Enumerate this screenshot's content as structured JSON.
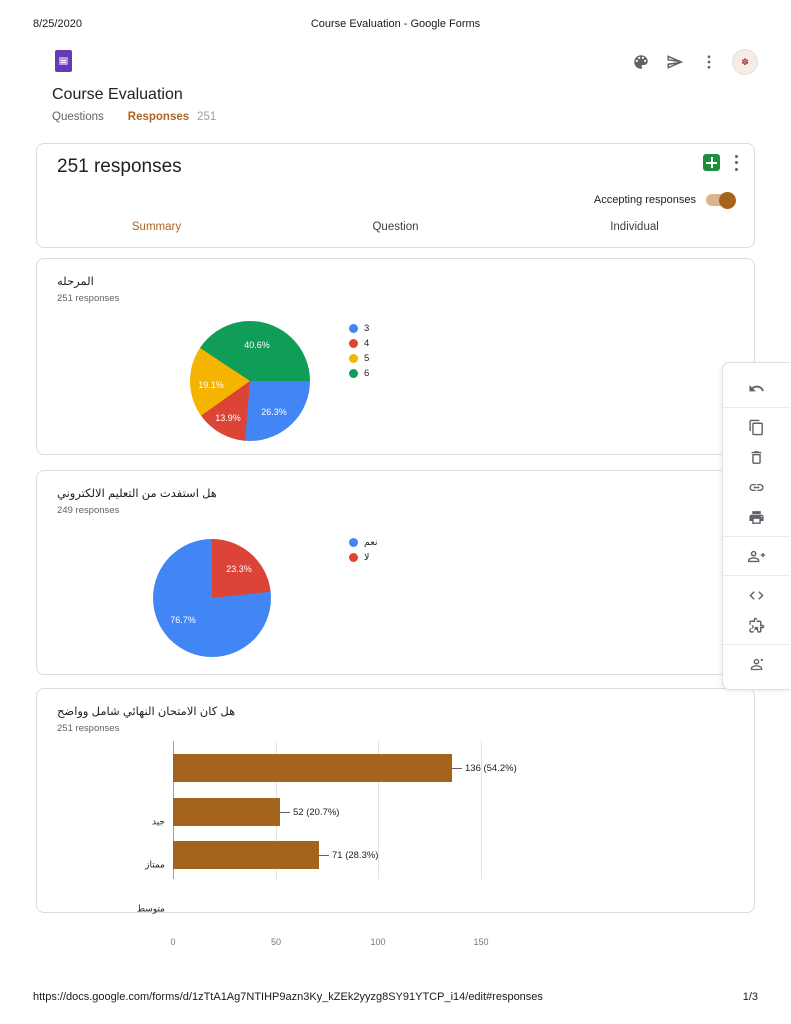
{
  "print_header": {
    "date": "8/25/2020",
    "title": "Course Evaluation - Google Forms"
  },
  "app_header": {
    "form_title": "Course Evaluation",
    "icons": [
      "palette-icon",
      "send-icon",
      "more-vert-icon",
      "profile-avatar"
    ],
    "tabs": {
      "questions": "Questions",
      "responses": "Responses",
      "responses_badge": "251"
    }
  },
  "responses_card": {
    "title": "251 responses",
    "icons": [
      "sheets-icon",
      "more-vert-icon"
    ],
    "accepting_label": "Accepting responses",
    "accepting_on": true,
    "view_tabs": {
      "summary": "Summary",
      "question": "Question",
      "individual": "Individual"
    },
    "active_view_tab": "Summary"
  },
  "chart_data": [
    {
      "type": "pie",
      "title": "المرحله",
      "responses": "251 responses",
      "legend_position": "right",
      "start_deg": 90,
      "slices": [
        {
          "label": "3",
          "value": 26.3,
          "pct": "26.3%",
          "color": "#4285f4"
        },
        {
          "label": "4",
          "value": 13.9,
          "pct": "13.9%",
          "color": "#db4437"
        },
        {
          "label": "5",
          "value": 19.1,
          "pct": "19.1%",
          "color": "#f4b400"
        },
        {
          "label": "6",
          "value": 40.6,
          "pct": "40.6%",
          "color": "#109d58"
        }
      ]
    },
    {
      "type": "pie",
      "title": "هل استفدت من التعليم الالكتروني",
      "responses": "249 responses",
      "legend_position": "right",
      "start_deg": 83.9,
      "slices": [
        {
          "label": "نعم",
          "value": 76.7,
          "pct": "76.7%",
          "color": "#4285f4"
        },
        {
          "label": "لا",
          "value": 23.3,
          "pct": "23.3%",
          "color": "#db4437"
        }
      ]
    },
    {
      "type": "bar",
      "title": "هل كان الامتحان النهائي شامل وواضح",
      "responses": "251 responses",
      "orientation": "horizontal",
      "categories": [
        "جيد",
        "ممتاز",
        "متوسط"
      ],
      "values": [
        136,
        52,
        71
      ],
      "value_labels": [
        "136 (54.2%)",
        "52 (20.7%)",
        "71 (28.3%)"
      ],
      "x_ticks": [
        "0",
        "50",
        "100",
        "150"
      ],
      "x_max": 150,
      "bar_color": "#a5641c",
      "grid": true
    }
  ],
  "toolbar": {
    "icons": [
      "undo-icon",
      "copy-icon",
      "delete-icon",
      "link-icon",
      "print-icon",
      "add-collaborators-icon",
      "code-icon",
      "addons-icon",
      "person-icon"
    ]
  },
  "footer": {
    "url": "https://docs.google.com/forms/d/1zTtA1Ag7NTIHP9azn3Ky_kZEk2yyzg8SY91YTCP_i14/edit#responses",
    "page": "1/3"
  },
  "colors": {
    "accent": "#b06524",
    "bar": "#a5641c",
    "toggle_track": "#dcb38c"
  }
}
